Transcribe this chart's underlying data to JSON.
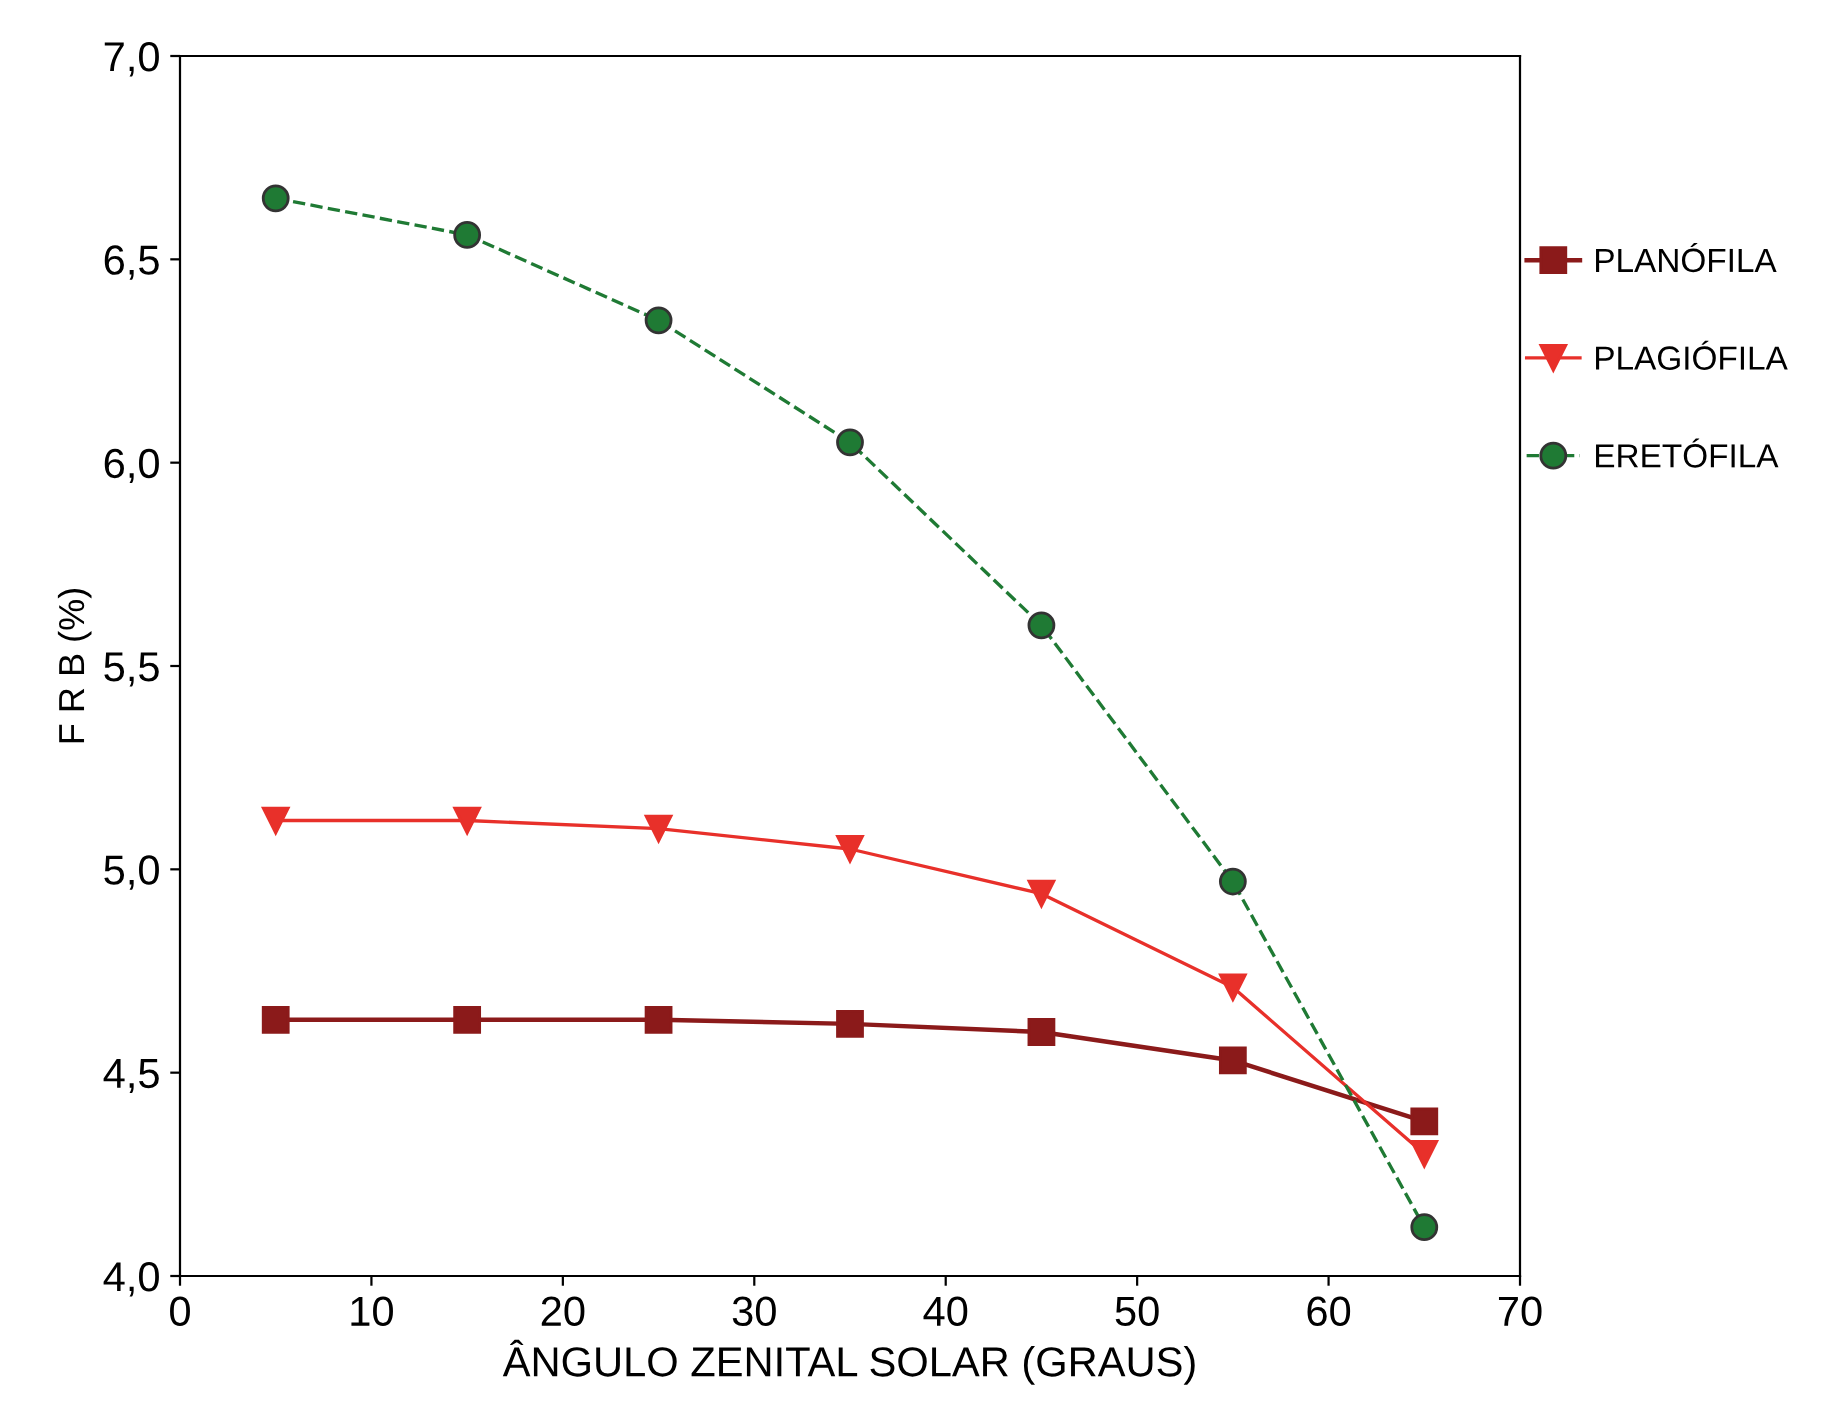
{
  "chart_data": {
    "type": "line",
    "xlabel": "ÂNGULO ZENITAL SOLAR (GRAUS)",
    "ylabel": "F R B (%)",
    "x": [
      5,
      15,
      25,
      35,
      45,
      55,
      65
    ],
    "series": [
      {
        "name": "PLANÓFILA",
        "color": "#8b1a1a",
        "marker": "square",
        "line_style": "solid",
        "values": [
          4.63,
          4.63,
          4.63,
          4.62,
          4.6,
          4.53,
          4.38
        ]
      },
      {
        "name": "PLAGIÓFILA",
        "color": "#e8302a",
        "marker": "triangle",
        "line_style": "solid",
        "values": [
          5.12,
          5.12,
          5.1,
          5.05,
          4.94,
          4.71,
          4.3
        ]
      },
      {
        "name": "ERETÓFILA",
        "color": "#1f7a34",
        "marker": "circle",
        "line_style": "dashed",
        "values": [
          6.65,
          6.56,
          6.35,
          6.05,
          5.6,
          4.97,
          4.12
        ]
      }
    ],
    "xlim": [
      0,
      70
    ],
    "xticks": [
      0,
      10,
      20,
      30,
      40,
      50,
      60,
      70
    ],
    "ylim": [
      4.0,
      7.0
    ],
    "yticks": [
      {
        "value": 4.0,
        "label": "4,0"
      },
      {
        "value": 4.5,
        "label": "4,5"
      },
      {
        "value": 5.0,
        "label": "5,0"
      },
      {
        "value": 5.5,
        "label": "5,5"
      },
      {
        "value": 6.0,
        "label": "6,0"
      },
      {
        "value": 6.5,
        "label": "6,5"
      },
      {
        "value": 7.0,
        "label": "7,0"
      }
    ],
    "grid": false,
    "legend": "right"
  }
}
